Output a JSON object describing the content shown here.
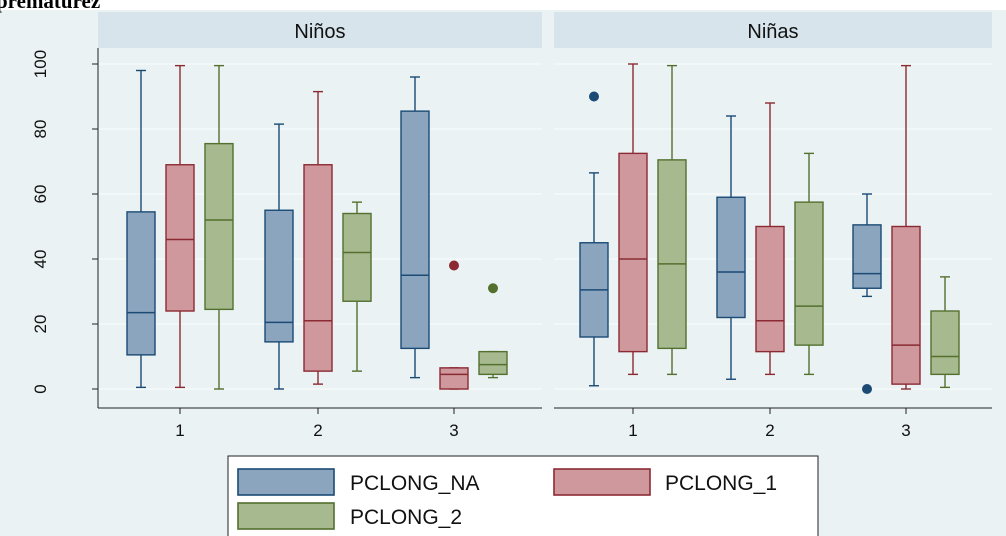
{
  "caption": "prematurez",
  "colors": {
    "background": "#eaf2f3",
    "strip": "#d7e4ec",
    "grid": "#f7fafb",
    "PCLONG_NA": {
      "fill": "#8ba5bf",
      "line": "#1b4a75"
    },
    "PCLONG_1": {
      "fill": "#cf989c",
      "line": "#8c2a33"
    },
    "PCLONG_2": {
      "fill": "#a6b98f",
      "line": "#54702f"
    }
  },
  "chart_data": {
    "type": "box",
    "ylim": [
      0,
      100
    ],
    "yticks": [
      0,
      20,
      40,
      60,
      80,
      100
    ],
    "categories": [
      "1",
      "2",
      "3"
    ],
    "legend": {
      "position": "bottom",
      "entries": [
        "PCLONG_NA",
        "PCLONG_1",
        "PCLONG_2"
      ]
    },
    "panels": [
      {
        "title": "Niños",
        "groups": [
          {
            "category": "1",
            "boxes": [
              {
                "series": "PCLONG_NA",
                "min": 0.5,
                "q1": 10.5,
                "median": 23.5,
                "q3": 54.5,
                "max": 98,
                "outliers": []
              },
              {
                "series": "PCLONG_1",
                "min": 0.5,
                "q1": 24,
                "median": 46,
                "q3": 69,
                "max": 99.5,
                "outliers": []
              },
              {
                "series": "PCLONG_2",
                "min": 0,
                "q1": 24.5,
                "median": 52,
                "q3": 75.5,
                "max": 99.5,
                "outliers": []
              }
            ]
          },
          {
            "category": "2",
            "boxes": [
              {
                "series": "PCLONG_NA",
                "min": 0,
                "q1": 14.5,
                "median": 20.5,
                "q3": 55,
                "max": 81.5,
                "outliers": []
              },
              {
                "series": "PCLONG_1",
                "min": 1.5,
                "q1": 5.5,
                "median": 21,
                "q3": 69,
                "max": 91.5,
                "outliers": []
              },
              {
                "series": "PCLONG_2",
                "min": 5.5,
                "q1": 27,
                "median": 42,
                "q3": 54,
                "max": 57.5,
                "outliers": []
              }
            ]
          },
          {
            "category": "3",
            "boxes": [
              {
                "series": "PCLONG_NA",
                "min": 3.5,
                "q1": 12.5,
                "median": 35,
                "q3": 85.5,
                "max": 96,
                "outliers": []
              },
              {
                "series": "PCLONG_1",
                "min": 0,
                "q1": 0,
                "median": 4.5,
                "q3": 6.5,
                "max": 6.5,
                "outliers": [
                  38
                ]
              },
              {
                "series": "PCLONG_2",
                "min": 3.5,
                "q1": 4.5,
                "median": 7.5,
                "q3": 11.5,
                "max": 11.5,
                "outliers": [
                  31
                ]
              }
            ]
          }
        ]
      },
      {
        "title": "Niñas",
        "groups": [
          {
            "category": "1",
            "boxes": [
              {
                "series": "PCLONG_NA",
                "min": 1,
                "q1": 16,
                "median": 30.5,
                "q3": 45,
                "max": 66.5,
                "outliers": [
                  90
                ]
              },
              {
                "series": "PCLONG_1",
                "min": 4.5,
                "q1": 11.5,
                "median": 40,
                "q3": 72.5,
                "max": 100,
                "outliers": []
              },
              {
                "series": "PCLONG_2",
                "min": 4.5,
                "q1": 12.5,
                "median": 38.5,
                "q3": 70.5,
                "max": 99.5,
                "outliers": []
              }
            ]
          },
          {
            "category": "2",
            "boxes": [
              {
                "series": "PCLONG_NA",
                "min": 3,
                "q1": 22,
                "median": 36,
                "q3": 59,
                "max": 84,
                "outliers": []
              },
              {
                "series": "PCLONG_1",
                "min": 4.5,
                "q1": 11.5,
                "median": 21,
                "q3": 50,
                "max": 88,
                "outliers": []
              },
              {
                "series": "PCLONG_2",
                "min": 4.5,
                "q1": 13.5,
                "median": 25.5,
                "q3": 57.5,
                "max": 72.5,
                "outliers": []
              }
            ]
          },
          {
            "category": "3",
            "boxes": [
              {
                "series": "PCLONG_NA",
                "min": 28.5,
                "q1": 31,
                "median": 35.5,
                "q3": 50.5,
                "max": 60,
                "outliers": [
                  0
                ]
              },
              {
                "series": "PCLONG_1",
                "min": 0,
                "q1": 1.5,
                "median": 13.5,
                "q3": 50,
                "max": 99.5,
                "outliers": []
              },
              {
                "series": "PCLONG_2",
                "min": 0.5,
                "q1": 4.5,
                "median": 10,
                "q3": 24,
                "max": 34.5,
                "outliers": []
              }
            ]
          }
        ]
      }
    ]
  }
}
